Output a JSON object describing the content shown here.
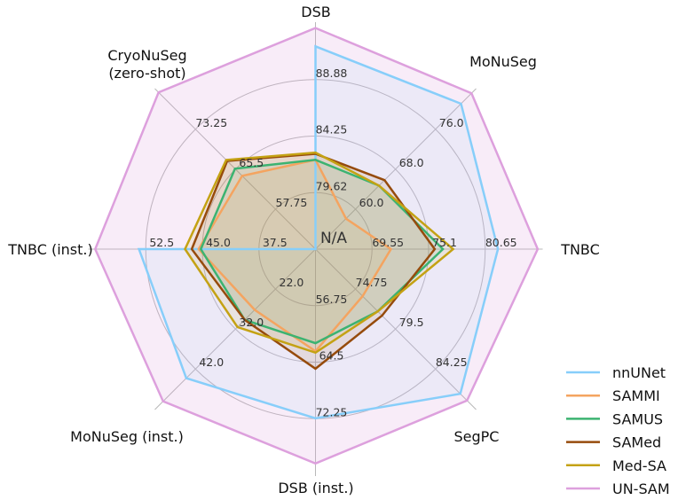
{
  "chart_data": {
    "type": "radar",
    "title": "",
    "center_label": "N/A",
    "axes": [
      {
        "name": "DSB",
        "label_lines": [
          "DSB"
        ],
        "ticks": [
          "79.62",
          "84.25",
          "88.88"
        ],
        "base": 74.99,
        "step": 4.63
      },
      {
        "name": "MoNuSeg",
        "label_lines": [
          "MoNuSeg"
        ],
        "ticks": [
          "60.0",
          "68.0",
          "76.0"
        ],
        "base": 52.0,
        "step": 8.0
      },
      {
        "name": "TNBC",
        "label_lines": [
          "TNBC"
        ],
        "ticks": [
          "69.55",
          "75.1",
          "80.65"
        ],
        "base": 64.0,
        "step": 5.55
      },
      {
        "name": "SegPC",
        "label_lines": [
          "SegPC"
        ],
        "ticks": [
          "74.75",
          "79.5",
          "84.25"
        ],
        "base": 70.0,
        "step": 4.75
      },
      {
        "name": "DSB (inst.)",
        "label_lines": [
          "DSB (inst.)"
        ],
        "ticks": [
          "56.75",
          "64.5",
          "72.25"
        ],
        "base": 49.0,
        "step": 7.75
      },
      {
        "name": "MoNuSeg (inst.)",
        "label_lines": [
          "MoNuSeg (inst.)"
        ],
        "ticks": [
          "22.0",
          "32.0",
          "42.0"
        ],
        "base": 12.0,
        "step": 10.0
      },
      {
        "name": "TNBC (inst.)",
        "label_lines": [
          "TNBC (inst.)"
        ],
        "ticks": [
          "37.5",
          "45.0",
          "52.5"
        ],
        "base": 30.0,
        "step": 7.5
      },
      {
        "name": "CryoNuSeg (zero-shot)",
        "label_lines": [
          "CryoNuSeg",
          "(zero-shot)"
        ],
        "ticks": [
          "57.75",
          "65.5",
          "73.25"
        ],
        "base": 50.0,
        "step": 7.75
      }
    ],
    "series": [
      {
        "name": "UN-SAM",
        "color": "#dda0dd",
        "fill_opacity": 0.2,
        "values": [
          93.1,
          83.2,
          85.8,
          88.0,
          78.4,
          50.1,
          59.2,
          80.4
        ]
      },
      {
        "name": "nnUNet",
        "color": "#87cefa",
        "fill_opacity": 0.1,
        "values": [
          91.6,
          81.1,
          81.9,
          87.2,
          72.2,
          44.3,
          53.4,
          null
        ]
      },
      {
        "name": "SAMMI",
        "color": "#f4a460",
        "fill_opacity": 0.1,
        "values": [
          82.3,
          58.1,
          71.4,
          75.6,
          63.0,
          27.2,
          45.5,
          64.2
        ]
      },
      {
        "name": "SAMUS",
        "color": "#3cb371",
        "fill_opacity": 0.1,
        "values": [
          82.3,
          64.7,
          76.5,
          77.4,
          61.9,
          29.7,
          45.2,
          65.6
        ]
      },
      {
        "name": "SAMed",
        "color": "#964b0c",
        "fill_opacity": 0.1,
        "values": [
          82.8,
          65.8,
          75.7,
          77.9,
          65.4,
          29.7,
          46.4,
          67.1
        ]
      },
      {
        "name": "Med-SA",
        "color": "#c4a214",
        "fill_opacity": 0.1,
        "values": [
          82.9,
          64.7,
          77.5,
          77.4,
          63.2,
          31.5,
          47.3,
          67.3
        ]
      }
    ],
    "legend": {
      "placement": "bottom-right",
      "entries": [
        "nnUNet",
        "SAMMI",
        "SAMUS",
        "SAMed",
        "Med-SA",
        "UN-SAM"
      ]
    },
    "grid": true
  }
}
